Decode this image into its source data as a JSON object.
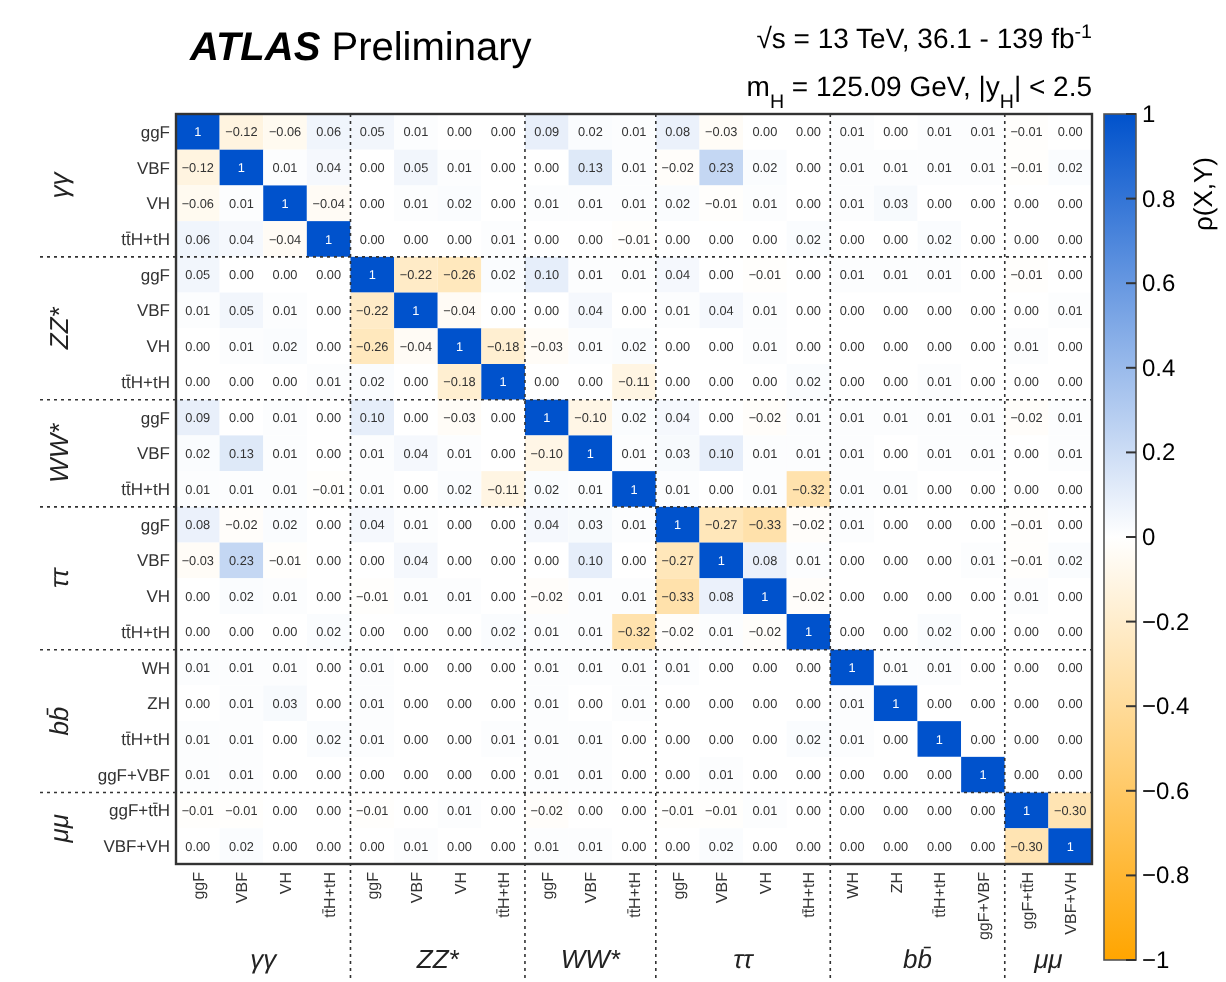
{
  "chart_data": {
    "type": "heatmap",
    "title": "ATLAS Preliminary",
    "subtitle": "√s = 13 TeV, 36.1 - 139 fb$^{-1}$",
    "clabel": "ρ(X,Y)",
    "annotations": [
      "m$_{H}$ = 125.09 GeV, |y$_{H}$| < 2.5",
      "γγ",
      "ZZ*",
      "WW*",
      "ττ",
      "bb̄",
      "μμ"
    ],
    "categories": [
      "ggF",
      "VBF",
      "VH",
      "tt̄H+tH",
      "ggF",
      "VBF",
      "VH",
      "tt̄H+tH",
      "ggF",
      "VBF",
      "tt̄H+tH",
      "ggF",
      "VBF",
      "VH",
      "tt̄H+tH",
      "WH",
      "ZH",
      "tt̄H+tH",
      "ggF+VBF",
      "ggF+tt̄H",
      "VBF+VH"
    ],
    "y_categories": [
      "ggF",
      "VBF",
      "VH",
      "tt̄H+tH",
      "ggF",
      "VBF",
      "VH",
      "tt̄H+tH",
      "ggF",
      "VBF",
      "tt̄H+tH",
      "ggF",
      "VBF",
      "VH",
      "tt̄H+tH",
      "WH",
      "ZH",
      "tt̄H+tH",
      "ggF+VBF",
      "ggF+tt̄H",
      "VBF+VH"
    ],
    "clim": [
      -1,
      1
    ],
    "cticks": [
      {
        "value": -1,
        "label": "−1"
      },
      {
        "value": -0.8,
        "label": "−0.8"
      },
      {
        "value": -0.6,
        "label": "−0.6"
      },
      {
        "value": -0.4,
        "label": "−0.4"
      },
      {
        "value": -0.2,
        "label": "−0.2"
      },
      0,
      0.2,
      0.4,
      0.6,
      0.8,
      1
    ],
    "cells": [
      [
        1,
        -0.12,
        -0.06,
        0.06,
        0.05,
        0.01,
        0,
        0,
        0.09,
        0.02,
        0.01,
        0.08,
        -0.03,
        0,
        0,
        0.01,
        0,
        0.01,
        0.01,
        -0.01,
        0
      ],
      [
        -0.12,
        1,
        0.01,
        0.04,
        0,
        0.05,
        0.01,
        0,
        0,
        0.13,
        0.01,
        -0.02,
        0.23,
        0.02,
        0,
        0.01,
        0.01,
        0.01,
        0.01,
        -0.01,
        0.02
      ],
      [
        -0.06,
        0.01,
        1,
        -0.04,
        0,
        0.01,
        0.02,
        0,
        0.01,
        0.01,
        0.01,
        0.02,
        -0.01,
        0.01,
        0,
        0.01,
        0.03,
        0,
        0,
        0,
        0
      ],
      [
        0.06,
        0.04,
        -0.04,
        1,
        0,
        0,
        0,
        0.01,
        0,
        0,
        -0.01,
        0,
        0,
        0,
        0.02,
        0,
        0,
        0.02,
        0,
        0,
        0
      ],
      [
        0.05,
        0,
        0,
        0,
        1,
        -0.22,
        -0.26,
        0.02,
        0.1,
        0.01,
        0.01,
        0.04,
        0,
        -0.01,
        0,
        0.01,
        0.01,
        0.01,
        0,
        -0.01,
        0
      ],
      [
        0.01,
        0.05,
        0.01,
        0,
        -0.22,
        1,
        -0.04,
        0,
        0,
        0.04,
        0,
        0.01,
        0.04,
        0.01,
        0,
        0,
        0,
        0,
        0,
        0,
        0.01
      ],
      [
        0,
        0.01,
        0.02,
        0,
        -0.26,
        -0.04,
        1,
        -0.18,
        -0.03,
        0.01,
        0.02,
        0,
        0,
        0.01,
        0,
        0,
        0,
        0,
        0,
        0.01,
        0
      ],
      [
        0,
        0,
        0,
        0.01,
        0.02,
        0,
        -0.18,
        1,
        0,
        0,
        -0.11,
        0,
        0,
        0,
        0.02,
        0,
        0,
        0.01,
        0,
        0,
        0
      ],
      [
        0.09,
        0,
        0.01,
        0,
        0.1,
        0,
        -0.03,
        0,
        1,
        -0.1,
        0.02,
        0.04,
        0,
        -0.02,
        0.01,
        0.01,
        0.01,
        0.01,
        0.01,
        -0.02,
        0.01
      ],
      [
        0.02,
        0.13,
        0.01,
        0,
        0.01,
        0.04,
        0.01,
        0,
        -0.1,
        1,
        0.01,
        0.03,
        0.1,
        0.01,
        0.01,
        0.01,
        0,
        0.01,
        0.01,
        0,
        0.01
      ],
      [
        0.01,
        0.01,
        0.01,
        -0.01,
        0.01,
        0,
        0.02,
        -0.11,
        0.02,
        0.01,
        1,
        0.01,
        0,
        0.01,
        -0.32,
        0.01,
        0.01,
        0,
        0,
        0,
        0
      ],
      [
        0.08,
        -0.02,
        0.02,
        0,
        0.04,
        0.01,
        0,
        0,
        0.04,
        0.03,
        0.01,
        1,
        -0.27,
        -0.33,
        -0.02,
        0.01,
        0,
        0,
        0,
        -0.01,
        0
      ],
      [
        -0.03,
        0.23,
        -0.01,
        0,
        0,
        0.04,
        0,
        0,
        0,
        0.1,
        0,
        -0.27,
        1,
        0.08,
        0.01,
        0,
        0,
        0,
        0.01,
        -0.01,
        0.02
      ],
      [
        0,
        0.02,
        0.01,
        0,
        -0.01,
        0.01,
        0.01,
        0,
        -0.02,
        0.01,
        0.01,
        -0.33,
        0.08,
        1,
        -0.02,
        0,
        0,
        0,
        0,
        0.01,
        0
      ],
      [
        0,
        0,
        0,
        0.02,
        0,
        0,
        0,
        0.02,
        0.01,
        0.01,
        -0.32,
        -0.02,
        0.01,
        -0.02,
        1,
        0,
        0,
        0.02,
        0,
        0,
        0
      ],
      [
        0.01,
        0.01,
        0.01,
        0,
        0.01,
        0,
        0,
        0,
        0.01,
        0.01,
        0.01,
        0.01,
        0,
        0,
        0,
        1,
        0.01,
        0.01,
        0,
        0,
        0
      ],
      [
        0,
        0.01,
        0.03,
        0,
        0.01,
        0,
        0,
        0,
        0.01,
        0,
        0.01,
        0,
        0,
        0,
        0,
        0.01,
        1,
        0,
        0,
        0,
        0
      ],
      [
        0.01,
        0.01,
        0,
        0.02,
        0.01,
        0,
        0,
        0.01,
        0.01,
        0.01,
        0,
        0,
        0,
        0,
        0.02,
        0.01,
        0,
        1,
        0,
        0,
        0
      ],
      [
        0.01,
        0.01,
        0,
        0,
        0,
        0,
        0,
        0,
        0.01,
        0.01,
        0,
        0,
        0.01,
        0,
        0,
        0,
        0,
        0,
        1,
        0,
        0
      ],
      [
        -0.01,
        -0.01,
        0,
        0,
        -0.01,
        0,
        0.01,
        0,
        -0.02,
        0,
        0,
        -0.01,
        -0.01,
        0.01,
        0,
        0,
        0,
        0,
        0,
        1,
        -0.3
      ],
      [
        0,
        0.02,
        0,
        0,
        0,
        0.01,
        0,
        0,
        0.01,
        0.01,
        0,
        0,
        0.02,
        0,
        0,
        0,
        0,
        0,
        0,
        -0.3,
        1
      ]
    ],
    "cell_labels": [
      [
        "1",
        "−0.12",
        "−0.06",
        "0.06",
        "0.05",
        "0.01",
        "0.00",
        "0.00",
        "0.09",
        "0.02",
        "0.01",
        "0.08",
        "−0.03",
        "0.00",
        "0.00",
        "0.01",
        "0.00",
        "0.01",
        "0.01",
        "−0.01",
        "0.00"
      ],
      [
        "−0.12",
        "1",
        "0.01",
        "0.04",
        "0.00",
        "0.05",
        "0.01",
        "0.00",
        "0.00",
        "0.13",
        "0.01",
        "−0.02",
        "0.23",
        "0.02",
        "0.00",
        "0.01",
        "0.01",
        "0.01",
        "0.01",
        "−0.01",
        "0.02"
      ],
      [
        "−0.06",
        "0.01",
        "1",
        "−0.04",
        "0.00",
        "0.01",
        "0.02",
        "0.00",
        "0.01",
        "0.01",
        "0.01",
        "0.02",
        "−0.01",
        "0.01",
        "0.00",
        "0.01",
        "0.03",
        "0.00",
        "0.00",
        "0.00",
        "0.00"
      ],
      [
        "0.06",
        "0.04",
        "−0.04",
        "1",
        "0.00",
        "0.00",
        "0.00",
        "0.01",
        "0.00",
        "0.00",
        "−0.01",
        "0.00",
        "0.00",
        "0.00",
        "0.02",
        "0.00",
        "0.00",
        "0.02",
        "0.00",
        "0.00",
        "0.00"
      ],
      [
        "0.05",
        "0.00",
        "0.00",
        "0.00",
        "1",
        "−0.22",
        "−0.26",
        "0.02",
        "0.10",
        "0.01",
        "0.01",
        "0.04",
        "0.00",
        "−0.01",
        "0.00",
        "0.01",
        "0.01",
        "0.01",
        "0.00",
        "−0.01",
        "0.00"
      ],
      [
        "0.01",
        "0.05",
        "0.01",
        "0.00",
        "−0.22",
        "1",
        "−0.04",
        "0.00",
        "0.00",
        "0.04",
        "0.00",
        "0.01",
        "0.04",
        "0.01",
        "0.00",
        "0.00",
        "0.00",
        "0.00",
        "0.00",
        "0.00",
        "0.01"
      ],
      [
        "0.00",
        "0.01",
        "0.02",
        "0.00",
        "−0.26",
        "−0.04",
        "1",
        "−0.18",
        "−0.03",
        "0.01",
        "0.02",
        "0.00",
        "0.00",
        "0.01",
        "0.00",
        "0.00",
        "0.00",
        "0.00",
        "0.00",
        "0.01",
        "0.00"
      ],
      [
        "0.00",
        "0.00",
        "0.00",
        "0.01",
        "0.02",
        "0.00",
        "−0.18",
        "1",
        "0.00",
        "0.00",
        "−0.11",
        "0.00",
        "0.00",
        "0.00",
        "0.02",
        "0.00",
        "0.00",
        "0.01",
        "0.00",
        "0.00",
        "0.00"
      ],
      [
        "0.09",
        "0.00",
        "0.01",
        "0.00",
        "0.10",
        "0.00",
        "−0.03",
        "0.00",
        "1",
        "−0.10",
        "0.02",
        "0.04",
        "0.00",
        "−0.02",
        "0.01",
        "0.01",
        "0.01",
        "0.01",
        "0.01",
        "−0.02",
        "0.01"
      ],
      [
        "0.02",
        "0.13",
        "0.01",
        "0.00",
        "0.01",
        "0.04",
        "0.01",
        "0.00",
        "−0.10",
        "1",
        "0.01",
        "0.03",
        "0.10",
        "0.01",
        "0.01",
        "0.01",
        "0.00",
        "0.01",
        "0.01",
        "0.00",
        "0.01"
      ],
      [
        "0.01",
        "0.01",
        "0.01",
        "−0.01",
        "0.01",
        "0.00",
        "0.02",
        "−0.11",
        "0.02",
        "0.01",
        "1",
        "0.01",
        "0.00",
        "0.01",
        "−0.32",
        "0.01",
        "0.01",
        "0.00",
        "0.00",
        "0.00",
        "0.00"
      ],
      [
        "0.08",
        "−0.02",
        "0.02",
        "0.00",
        "0.04",
        "0.01",
        "0.00",
        "0.00",
        "0.04",
        "0.03",
        "0.01",
        "1",
        "−0.27",
        "−0.33",
        "−0.02",
        "0.01",
        "0.00",
        "0.00",
        "0.00",
        "−0.01",
        "0.00"
      ],
      [
        "−0.03",
        "0.23",
        "−0.01",
        "0.00",
        "0.00",
        "0.04",
        "0.00",
        "0.00",
        "0.00",
        "0.10",
        "0.00",
        "−0.27",
        "1",
        "0.08",
        "0.01",
        "0.00",
        "0.00",
        "0.00",
        "0.01",
        "−0.01",
        "0.02"
      ],
      [
        "0.00",
        "0.02",
        "0.01",
        "0.00",
        "−0.01",
        "0.01",
        "0.01",
        "0.00",
        "−0.02",
        "0.01",
        "0.01",
        "−0.33",
        "0.08",
        "1",
        "−0.02",
        "0.00",
        "0.00",
        "0.00",
        "0.00",
        "0.01",
        "0.00"
      ],
      [
        "0.00",
        "0.00",
        "0.00",
        "0.02",
        "0.00",
        "0.00",
        "0.00",
        "0.02",
        "0.01",
        "0.01",
        "−0.32",
        "−0.02",
        "0.01",
        "−0.02",
        "1",
        "0.00",
        "0.00",
        "0.02",
        "0.00",
        "0.00",
        "0.00"
      ],
      [
        "0.01",
        "0.01",
        "0.01",
        "0.00",
        "0.01",
        "0.00",
        "0.00",
        "0.00",
        "0.01",
        "0.01",
        "0.01",
        "0.01",
        "0.00",
        "0.00",
        "0.00",
        "1",
        "0.01",
        "0.01",
        "0.00",
        "0.00",
        "0.00"
      ],
      [
        "0.00",
        "0.01",
        "0.03",
        "0.00",
        "0.01",
        "0.00",
        "0.00",
        "0.00",
        "0.01",
        "0.00",
        "0.01",
        "0.00",
        "0.00",
        "0.00",
        "0.00",
        "0.01",
        "1",
        "0.00",
        "0.00",
        "0.00",
        "0.00"
      ],
      [
        "0.01",
        "0.01",
        "0.00",
        "0.02",
        "0.01",
        "0.00",
        "0.00",
        "0.01",
        "0.01",
        "0.01",
        "0.00",
        "0.00",
        "0.00",
        "0.00",
        "0.02",
        "0.01",
        "0.00",
        "1",
        "0.00",
        "0.00",
        "0.00"
      ],
      [
        "0.01",
        "0.01",
        "0.00",
        "0.00",
        "0.00",
        "0.00",
        "0.00",
        "0.00",
        "0.01",
        "0.01",
        "0.00",
        "0.00",
        "0.01",
        "0.00",
        "0.00",
        "0.00",
        "0.00",
        "0.00",
        "1",
        "0.00",
        "0.00"
      ],
      [
        "−0.01",
        "−0.01",
        "0.00",
        "0.00",
        "−0.01",
        "0.00",
        "0.01",
        "0.00",
        "−0.02",
        "0.00",
        "0.00",
        "−0.01",
        "−0.01",
        "0.01",
        "0.00",
        "0.00",
        "0.00",
        "0.00",
        "0.00",
        "1",
        "−0.30"
      ],
      [
        "0.00",
        "0.02",
        "0.00",
        "0.00",
        "0.00",
        "0.01",
        "0.00",
        "0.00",
        "0.01",
        "0.01",
        "0.00",
        "0.00",
        "0.02",
        "0.00",
        "0.00",
        "0.00",
        "0.00",
        "0.00",
        "0.00",
        "−0.30",
        "1"
      ]
    ]
  }
}
